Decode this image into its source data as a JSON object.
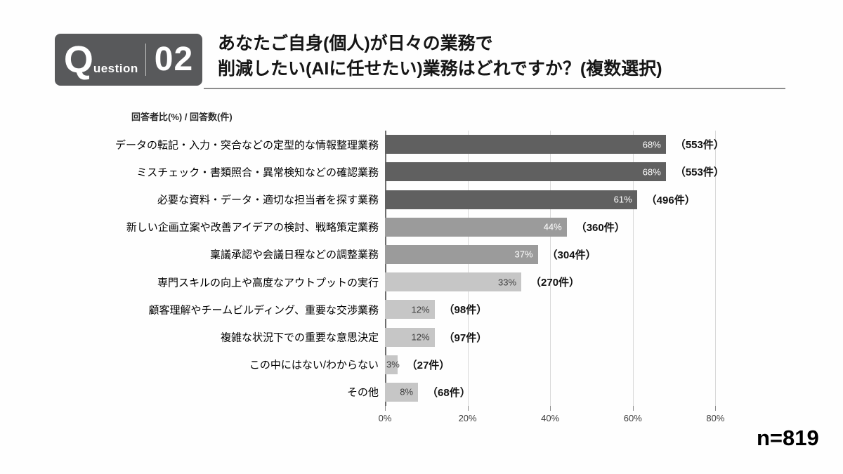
{
  "question_badge": {
    "q_large": "Q",
    "q_rest": "uestion",
    "number": "02"
  },
  "title": {
    "line1": "あなたご自身(個人)が日々の業務で",
    "line2": "削減したい(AIに任せたい)業務はどれですか？(複数選択)"
  },
  "sample_size": "n=819",
  "chart_data": {
    "type": "bar",
    "orientation": "horizontal",
    "axis_caption": "回答者比(%) / 回答数(件)",
    "xlim": [
      0,
      100
    ],
    "grid": "vertical",
    "legend": "none",
    "ticks": [
      {
        "label": "0%",
        "value": 0
      },
      {
        "label": "20%",
        "value": 20
      },
      {
        "label": "40%",
        "value": 40
      },
      {
        "label": "60%",
        "value": 60
      },
      {
        "label": "80%",
        "value": 80
      }
    ],
    "gridline_values": [
      20,
      40,
      60,
      80
    ],
    "colors": {
      "dark": "#606060",
      "medium": "#9b9b9b",
      "light": "#c6c6c6"
    },
    "pct_text_colors": {
      "dark": "#ffffff",
      "medium": "#ffffff",
      "light": "#3f3f3f"
    },
    "rows": [
      {
        "category": "データの転記・入力・突合などの定型的な情報整理業務",
        "pct": 68,
        "count": 553,
        "pct_label": "68%",
        "count_label": "（553件）",
        "tone": "dark"
      },
      {
        "category": "ミスチェック・書類照合・異常検知などの確認業務",
        "pct": 68,
        "count": 553,
        "pct_label": "68%",
        "count_label": "（553件）",
        "tone": "dark"
      },
      {
        "category": "必要な資料・データ・適切な担当者を探す業務",
        "pct": 61,
        "count": 496,
        "pct_label": "61%",
        "count_label": "（496件）",
        "tone": "dark"
      },
      {
        "category": "新しい企画立案や改善アイデアの検討、戦略策定業務",
        "pct": 44,
        "count": 360,
        "pct_label": "44%",
        "count_label": "（360件）",
        "tone": "medium"
      },
      {
        "category": "稟議承認や会議日程などの調整業務",
        "pct": 37,
        "count": 304,
        "pct_label": "37%",
        "count_label": "（304件）",
        "tone": "medium"
      },
      {
        "category": "専門スキルの向上や高度なアウトプットの実行",
        "pct": 33,
        "count": 270,
        "pct_label": "33%",
        "count_label": "（270件）",
        "tone": "light"
      },
      {
        "category": "顧客理解やチームビルディング、重要な交渉業務",
        "pct": 12,
        "count": 98,
        "pct_label": "12%",
        "count_label": "（98件）",
        "tone": "light"
      },
      {
        "category": "複雑な状況下での重要な意思決定",
        "pct": 12,
        "count": 97,
        "pct_label": "12%",
        "count_label": "（97件）",
        "tone": "light"
      },
      {
        "category": "この中にはない/わからない",
        "pct": 3,
        "count": 27,
        "pct_label": "3%",
        "count_label": "（27件）",
        "tone": "light"
      },
      {
        "category": "その他",
        "pct": 8,
        "count": 68,
        "pct_label": "8%",
        "count_label": "（68件）",
        "tone": "light"
      }
    ]
  }
}
